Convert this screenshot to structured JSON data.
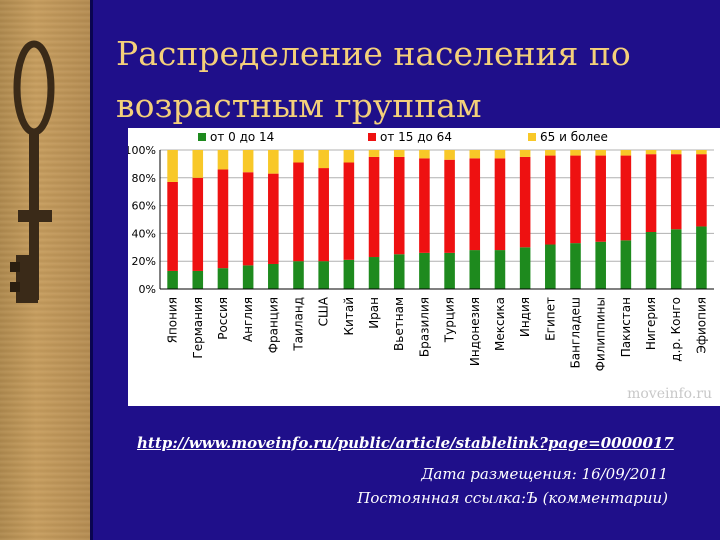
{
  "slide": {
    "title": "Распределение населения по возрастным группам",
    "url": "http://www.moveinfo.ru/public/article/stablelink?page=0000017",
    "date": "Дата размещения: 16/09/2011",
    "permalink": "Постоянная ссылка:Ъ (комментарии)",
    "watermark": "moveinfo.ru",
    "colors": {
      "background": "#1f0f8a",
      "title": "#f4d07a",
      "green": "#1e8a1e",
      "red": "#ee1111",
      "yellow": "#f8c828"
    }
  },
  "chart_data": {
    "type": "bar",
    "stacked": true,
    "ylim": [
      0,
      100
    ],
    "yticks": [
      "0%",
      "20%",
      "40%",
      "60%",
      "80%",
      "100%"
    ],
    "legend_position": "top",
    "categories": [
      "Япония",
      "Германия",
      "Россия",
      "Англия",
      "Франция",
      "Таиланд",
      "США",
      "Китай",
      "Иран",
      "Вьетнам",
      "Бразилия",
      "Турция",
      "Индонезия",
      "Мексика",
      "Индия",
      "Египет",
      "Бангладеш",
      "Филиппины",
      "Пакистан",
      "Нигерия",
      "д.р. Конго",
      "Эфиопия"
    ],
    "series": [
      {
        "name": "от 0 до 14",
        "color": "#1e8a1e",
        "values": [
          13,
          13,
          15,
          17,
          18,
          20,
          20,
          21,
          23,
          25,
          26,
          26,
          28,
          28,
          30,
          32,
          33,
          34,
          35,
          41,
          43,
          45
        ]
      },
      {
        "name": "от 15 до 64",
        "color": "#ee1111",
        "values": [
          64,
          67,
          71,
          67,
          65,
          71,
          67,
          70,
          72,
          70,
          68,
          67,
          66,
          66,
          65,
          64,
          63,
          62,
          61,
          56,
          54,
          52
        ]
      },
      {
        "name": "65 и более",
        "color": "#f8c828",
        "values": [
          23,
          20,
          14,
          16,
          17,
          9,
          13,
          9,
          5,
          5,
          6,
          7,
          6,
          6,
          5,
          4,
          4,
          4,
          4,
          3,
          3,
          3
        ]
      }
    ]
  }
}
